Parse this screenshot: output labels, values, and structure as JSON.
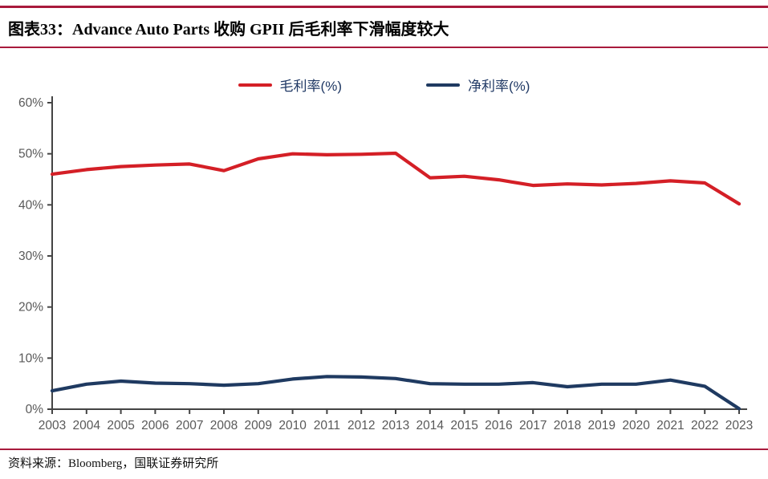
{
  "figure": {
    "title": "图表33：Advance Auto Parts 收购 GPII 后毛利率下滑幅度较大",
    "source": "资料来源：Bloomberg，国联证券研究所"
  },
  "colors": {
    "rule": "#a81a3c",
    "gross_line": "#d41f26",
    "net_line": "#1f3a61",
    "legend_text": "#1f3864",
    "axis": "#444444",
    "tick_label": "#595959"
  },
  "chart_data": {
    "type": "line",
    "title": "图表33：Advance Auto Parts 收购 GPII 后毛利率下滑幅度较大",
    "xlabel": "",
    "ylabel": "",
    "grid": false,
    "legend_position": "top-center",
    "ylim": [
      0,
      60
    ],
    "yticks": [
      "0%",
      "10%",
      "20%",
      "30%",
      "40%",
      "50%",
      "60%"
    ],
    "x": [
      2003,
      2004,
      2005,
      2006,
      2007,
      2008,
      2009,
      2010,
      2011,
      2012,
      2013,
      2014,
      2015,
      2016,
      2017,
      2018,
      2019,
      2020,
      2021,
      2022,
      2023
    ],
    "series": [
      {
        "name": "毛利率(%)",
        "color_key": "gross_line",
        "values": [
          46.0,
          46.9,
          47.5,
          47.8,
          48.0,
          46.7,
          49.0,
          50.0,
          49.8,
          49.9,
          50.1,
          45.3,
          45.6,
          44.9,
          43.8,
          44.1,
          43.9,
          44.2,
          44.7,
          44.3,
          40.2
        ]
      },
      {
        "name": "净利率(%)",
        "color_key": "net_line",
        "values": [
          3.6,
          4.9,
          5.5,
          5.1,
          5.0,
          4.7,
          5.0,
          5.9,
          6.4,
          6.3,
          6.0,
          5.0,
          4.9,
          4.9,
          5.2,
          4.4,
          4.9,
          4.9,
          5.7,
          4.5,
          0.1
        ]
      }
    ]
  }
}
